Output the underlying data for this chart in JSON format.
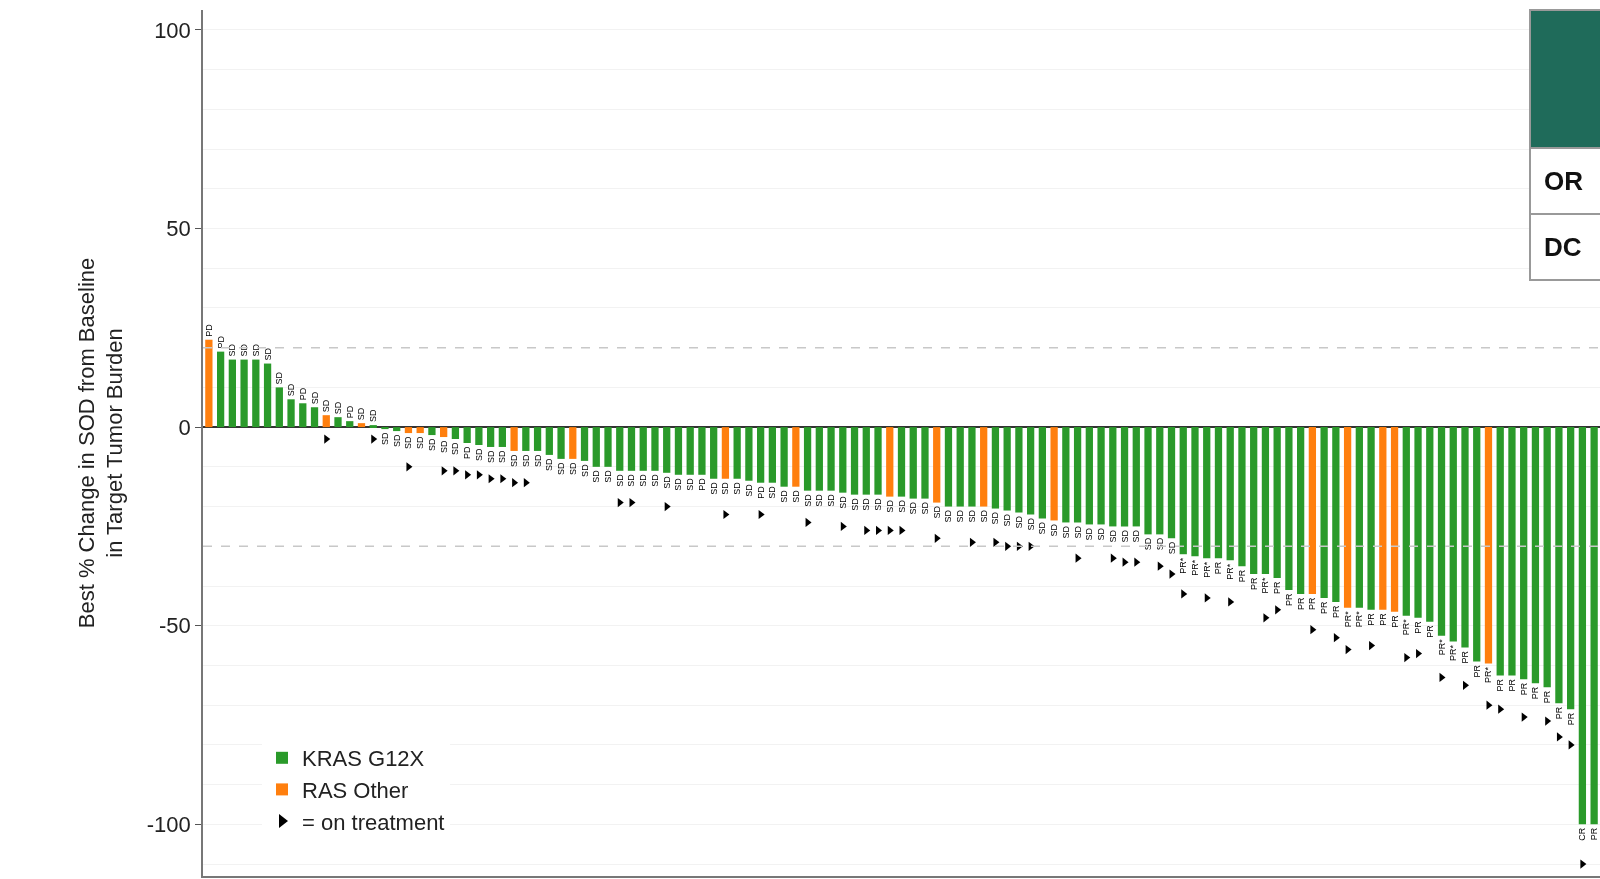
{
  "chart_data": {
    "type": "bar",
    "ylabel": "Best % Change in SOD from Baseline\nin Target Tumor Burden",
    "categories": [
      null,
      null,
      null,
      null,
      null,
      null,
      null,
      null,
      null,
      null,
      null,
      null,
      null,
      null,
      null,
      null,
      null,
      null,
      null,
      null,
      null,
      null,
      null,
      null,
      null,
      null,
      null,
      null,
      null,
      null,
      null,
      null,
      null,
      null,
      null,
      null,
      null,
      null,
      null,
      null,
      null,
      null,
      null,
      null,
      null,
      null,
      null,
      null,
      null,
      null,
      null,
      null,
      null,
      null,
      null,
      null,
      null,
      null,
      null,
      null,
      null,
      null,
      null,
      null,
      null,
      null,
      null,
      null,
      null,
      null,
      null,
      null,
      null,
      null,
      null,
      null,
      null,
      null,
      null,
      null,
      null,
      null,
      null,
      null,
      null,
      null,
      null,
      null,
      null,
      null,
      null,
      null,
      null,
      null,
      null,
      null,
      null,
      null,
      null,
      null,
      null,
      null,
      null,
      null,
      null,
      null,
      null,
      null,
      null,
      null,
      null,
      null,
      null,
      null,
      null,
      null,
      null,
      null,
      null
    ],
    "series": [
      {
        "name": "KRAS G12X",
        "color": "#2a9a2a",
        "values": [
          null,
          19,
          17,
          17,
          17,
          16,
          10,
          7,
          6,
          5,
          null,
          2.5,
          1.5,
          null,
          0.5,
          -0.5,
          -1,
          null,
          null,
          -2,
          null,
          -3,
          -4,
          -4.5,
          -5,
          -5,
          null,
          -6,
          -6,
          -7,
          -8,
          null,
          -8.5,
          -10,
          -10,
          -11,
          -11,
          -11,
          -11,
          -11.5,
          -12,
          -12,
          -12,
          -13,
          null,
          -13,
          -13.5,
          -14,
          -14,
          -15,
          null,
          -16,
          -16,
          -16,
          -16.5,
          -17,
          -17,
          -17,
          null,
          -17.5,
          -18,
          -18,
          null,
          -20,
          -20,
          -20,
          null,
          -20.5,
          -21,
          -21.5,
          -22,
          -23,
          null,
          -24,
          -24,
          -24.5,
          -24.5,
          -25,
          -25,
          -25,
          -27,
          -27,
          -28,
          -32,
          -32.5,
          -33,
          -33,
          -33.5,
          -35,
          -37,
          -37,
          -38,
          -41,
          -42,
          null,
          -43,
          -44,
          null,
          -45.5,
          -46,
          null,
          null,
          -47.5,
          -48,
          -49,
          -52.5,
          -54,
          -55.5,
          -59,
          null,
          -62.5,
          -62.5,
          -63.5,
          -64.5,
          -65.5,
          -69.5,
          -71,
          -100,
          -100
        ],
        "value_labels": [
          null,
          "PD",
          "SD",
          "SD",
          "SD",
          "SD",
          "SD",
          "SD",
          "PD",
          "SD",
          null,
          "SD",
          "PD",
          null,
          "SD",
          "SD",
          "SD",
          null,
          null,
          "SD",
          null,
          "SD",
          "PD",
          "SD",
          "SD",
          "SD",
          null,
          "SD",
          "SD",
          "SD",
          "SD",
          null,
          "SD",
          "SD",
          "SD",
          "SD",
          "SD",
          "SD",
          "SD",
          "SD",
          "SD",
          "SD",
          "PD",
          "SD",
          null,
          "SD",
          "SD",
          "PD",
          "SD",
          "SD",
          null,
          "SD",
          "SD",
          "SD",
          "SD",
          "SD",
          "SD",
          "SD",
          null,
          "SD",
          "SD",
          "SD",
          null,
          "SD",
          "SD",
          "SD",
          null,
          "SD",
          "SD",
          "SD",
          "SD",
          "SD",
          null,
          "SD",
          "SD",
          "SD",
          "SD",
          "SD",
          "SD",
          "SD",
          "SD",
          "SD",
          "SD",
          "PR*",
          "PR*",
          "PR*",
          "PR",
          "PR*",
          "PR",
          "PR",
          "PR*",
          "PR",
          "PR",
          "PR",
          null,
          "PR",
          "PR",
          null,
          "PR*",
          "PR",
          null,
          null,
          "PR*",
          "PR",
          "PR",
          "PR*",
          "PR*",
          "PR",
          "PR",
          null,
          "PR",
          "PR",
          "PR",
          "PR",
          "PR",
          "PR",
          "PR",
          "CR",
          "PR"
        ]
      },
      {
        "name": "RAS Other",
        "color": "#ff7f0e",
        "values": [
          22,
          null,
          null,
          null,
          null,
          null,
          null,
          null,
          null,
          null,
          3,
          null,
          null,
          1,
          null,
          null,
          null,
          -1.5,
          -1.5,
          null,
          -2.5,
          null,
          null,
          null,
          null,
          null,
          -6,
          null,
          null,
          null,
          null,
          -8,
          null,
          null,
          null,
          null,
          null,
          null,
          null,
          null,
          null,
          null,
          null,
          null,
          -13,
          null,
          null,
          null,
          null,
          null,
          -15,
          null,
          null,
          null,
          null,
          null,
          null,
          null,
          -17.5,
          null,
          null,
          null,
          -19,
          null,
          null,
          null,
          -20,
          null,
          null,
          null,
          null,
          null,
          -23.5,
          null,
          null,
          null,
          null,
          null,
          null,
          null,
          null,
          null,
          null,
          null,
          null,
          null,
          null,
          null,
          null,
          null,
          null,
          null,
          null,
          null,
          -42,
          null,
          null,
          -45.5,
          null,
          null,
          -46,
          -46.5,
          null,
          null,
          null,
          null,
          null,
          null,
          null,
          -59.5,
          null,
          null,
          null,
          null,
          null,
          null,
          null,
          null,
          null
        ],
        "value_labels": [
          "PD",
          null,
          null,
          null,
          null,
          null,
          null,
          null,
          null,
          null,
          "SD",
          null,
          null,
          "SD",
          null,
          null,
          null,
          "SD",
          "SD",
          null,
          "SD",
          null,
          null,
          null,
          null,
          null,
          "SD",
          null,
          null,
          null,
          null,
          "SD",
          null,
          null,
          null,
          null,
          null,
          null,
          null,
          null,
          null,
          null,
          null,
          null,
          "SD",
          null,
          null,
          null,
          null,
          null,
          "SD",
          null,
          null,
          null,
          null,
          null,
          null,
          null,
          "SD",
          null,
          null,
          null,
          "SD",
          null,
          null,
          null,
          "SD",
          null,
          null,
          null,
          null,
          null,
          "SD",
          null,
          null,
          null,
          null,
          null,
          null,
          null,
          null,
          null,
          null,
          null,
          null,
          null,
          null,
          null,
          null,
          null,
          null,
          null,
          null,
          null,
          "PR",
          null,
          null,
          "PR*",
          null,
          null,
          "PR",
          "PR",
          null,
          null,
          null,
          null,
          null,
          null,
          null,
          "PR*",
          null,
          null,
          null,
          null,
          null,
          null,
          null,
          null,
          null
        ]
      },
      {
        "name": "= on treatment",
        "type": "scatter",
        "marker": "triangle",
        "color": "#000000",
        "values": [
          null,
          null,
          null,
          null,
          null,
          null,
          null,
          null,
          null,
          null,
          -3,
          null,
          null,
          null,
          -3,
          null,
          null,
          -10,
          null,
          null,
          -11,
          -11,
          -12,
          -12,
          -13,
          -13,
          -14,
          -14,
          null,
          null,
          null,
          null,
          null,
          null,
          null,
          -19,
          -19,
          null,
          null,
          -20,
          null,
          null,
          null,
          null,
          -22,
          null,
          null,
          -22,
          null,
          null,
          null,
          -24,
          null,
          null,
          -25,
          null,
          -26,
          -26,
          -26,
          -26,
          null,
          null,
          -28,
          null,
          null,
          -29,
          null,
          -29,
          -30,
          -30,
          -30,
          null,
          null,
          null,
          -33,
          null,
          null,
          -33,
          -34,
          -34,
          null,
          -35,
          -37,
          -42,
          null,
          -43,
          null,
          -44,
          null,
          null,
          -48,
          -46,
          null,
          null,
          -51,
          null,
          -53,
          -56,
          null,
          -55,
          null,
          null,
          -58,
          -57,
          null,
          -63,
          null,
          -65,
          null,
          -70,
          -71,
          null,
          -73,
          null,
          -74,
          -78,
          -80,
          -110,
          null
        ]
      }
    ],
    "ylim": [
      -113,
      105
    ],
    "yticks": [
      100,
      {
        "value": 90,
        "label": null
      },
      {
        "value": 80,
        "label": null
      },
      {
        "value": 70,
        "label": null
      },
      {
        "value": 60,
        "label": null
      },
      50,
      {
        "value": 40,
        "label": null
      },
      {
        "value": 30,
        "label": null
      },
      {
        "value": 10,
        "label": null
      },
      0,
      {
        "value": -10,
        "label": null
      },
      {
        "value": -20,
        "label": null
      },
      {
        "value": -40,
        "label": null
      },
      -50,
      {
        "value": -60,
        "label": null
      },
      {
        "value": -70,
        "label": null
      },
      {
        "value": -80,
        "label": null
      },
      {
        "value": -90,
        "label": null
      },
      -100,
      {
        "value": -110,
        "label": null
      }
    ],
    "ref_lines": [
      {
        "axis": "y",
        "value": 20,
        "color": "#c8c8c8",
        "line_style": "dashed"
      },
      {
        "axis": "y",
        "value": -30,
        "color": "#c8c8c8",
        "line_style": "dashed"
      }
    ],
    "annotations": [
      "OR",
      "DC"
    ],
    "grid": "y",
    "legend": "bottom left",
    "tick_labels": "y"
  }
}
